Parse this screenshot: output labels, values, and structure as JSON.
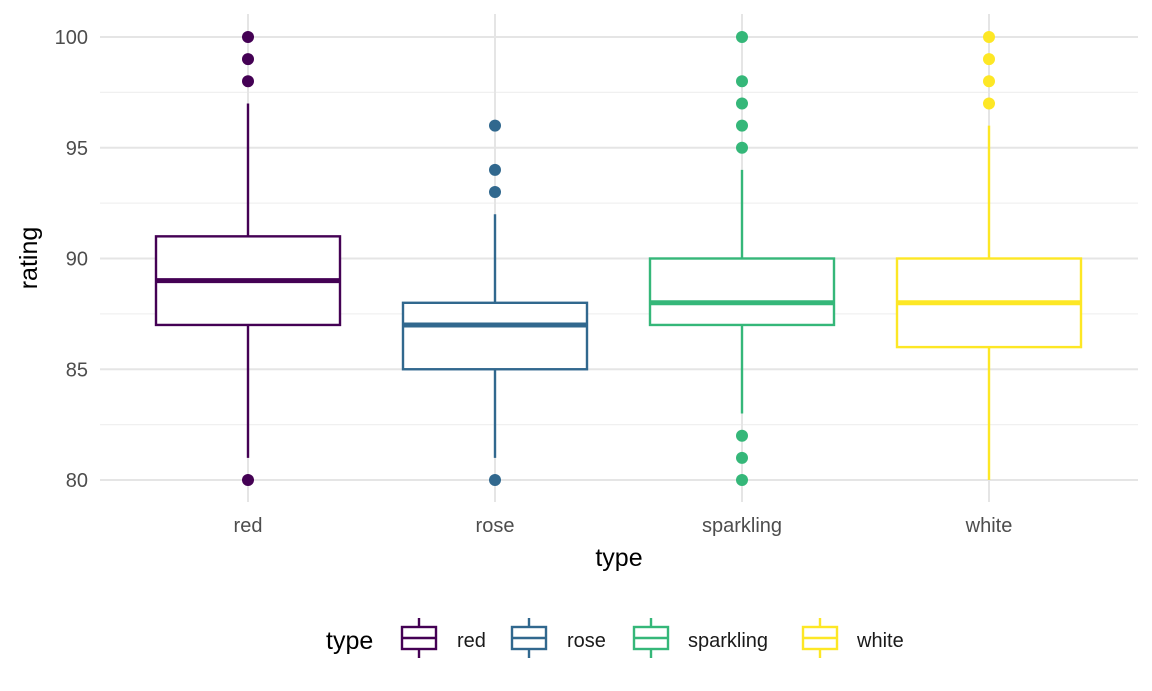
{
  "chart_data": {
    "type": "box",
    "xlabel": "type",
    "ylabel": "rating",
    "ylim": [
      79,
      100.5
    ],
    "yticks": [
      80,
      85,
      90,
      95,
      100
    ],
    "grid": true,
    "legend_position": "bottom",
    "legend_title": "type",
    "categories": [
      "red",
      "rose",
      "sparkling",
      "white"
    ],
    "series": [
      {
        "name": "red",
        "color": "#440154",
        "min": 81,
        "q1": 87,
        "median": 89,
        "q3": 91,
        "max": 97,
        "outliers": [
          80,
          98,
          99,
          100
        ]
      },
      {
        "name": "rose",
        "color": "#31688e",
        "min": 81,
        "q1": 85,
        "median": 87,
        "q3": 88,
        "max": 92,
        "outliers": [
          80,
          93,
          94,
          96
        ]
      },
      {
        "name": "sparkling",
        "color": "#35b779",
        "min": 83,
        "q1": 87,
        "median": 88,
        "q3": 90,
        "max": 94,
        "outliers": [
          80,
          81,
          82,
          95,
          96,
          97,
          98,
          100
        ]
      },
      {
        "name": "white",
        "color": "#fde725",
        "min": 80,
        "q1": 86,
        "median": 88,
        "q3": 90,
        "max": 96,
        "outliers": [
          97,
          98,
          99,
          100
        ]
      }
    ]
  }
}
